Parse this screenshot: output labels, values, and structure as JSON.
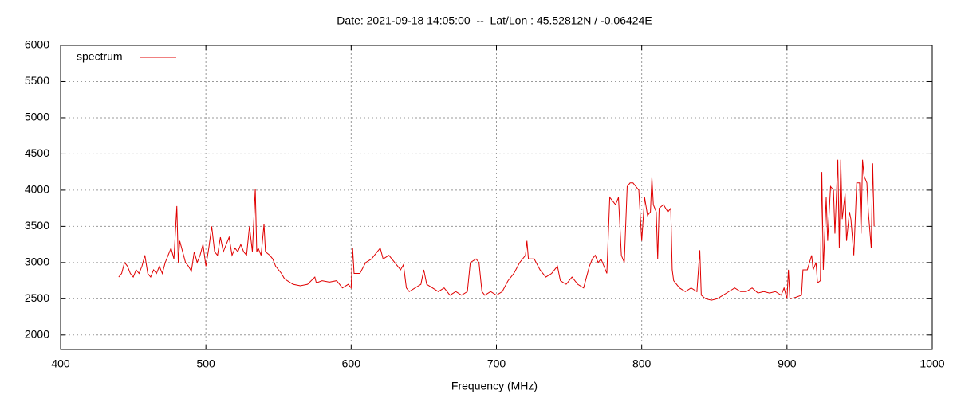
{
  "chart_data": {
    "type": "line",
    "title": "Date: 2021-09-18 14:05:00  --  Lat/Lon : 45.52812N / -0.06424E",
    "x_label": "Frequency (MHz)",
    "xlim": [
      400,
      1000
    ],
    "xticks": [
      400,
      500,
      600,
      700,
      800,
      900,
      1000
    ],
    "ylim": [
      1800,
      6000
    ],
    "yticks": [
      2000,
      2500,
      3000,
      3500,
      4000,
      4500,
      5000,
      5500,
      6000
    ],
    "grid": true,
    "legend": "top-left",
    "series": [
      {
        "name": "spectrum",
        "color": "#e00000",
        "x": [
          440,
          442,
          444,
          446,
          448,
          450,
          452,
          454,
          456,
          458,
          460,
          462,
          464,
          466,
          468,
          470,
          472,
          474,
          476,
          478,
          480,
          481,
          482,
          484,
          486,
          488,
          490,
          492,
          494,
          496,
          498,
          500,
          502,
          504,
          506,
          508,
          510,
          512,
          514,
          516,
          518,
          520,
          522,
          524,
          526,
          528,
          530,
          532,
          534,
          535,
          536,
          538,
          540,
          541,
          544,
          546,
          548,
          550,
          552,
          554,
          556,
          560,
          565,
          570,
          575,
          576,
          580,
          585,
          590,
          594,
          598,
          600,
          601,
          602,
          606,
          610,
          614,
          618,
          620,
          622,
          626,
          630,
          634,
          636,
          638,
          640,
          644,
          648,
          650,
          652,
          656,
          660,
          664,
          668,
          672,
          676,
          680,
          682,
          686,
          688,
          690,
          692,
          696,
          700,
          704,
          708,
          712,
          716,
          720,
          721,
          722,
          726,
          730,
          734,
          738,
          742,
          744,
          748,
          752,
          756,
          760,
          764,
          766,
          768,
          770,
          772,
          776,
          778,
          780,
          782,
          784,
          786,
          788,
          790,
          792,
          794,
          796,
          798,
          800,
          802,
          804,
          806,
          807,
          808,
          810,
          811,
          812,
          815,
          818,
          820,
          821,
          822,
          826,
          830,
          834,
          838,
          840,
          841,
          844,
          848,
          852,
          856,
          860,
          864,
          868,
          872,
          876,
          880,
          884,
          888,
          892,
          896,
          898,
          900,
          901,
          902,
          906,
          910,
          911,
          914,
          917,
          918,
          920,
          921,
          923,
          924,
          925,
          927,
          928,
          930,
          932,
          933,
          935,
          936,
          937,
          938,
          940,
          941,
          943,
          944,
          946,
          948,
          950,
          951,
          952,
          953,
          955,
          956,
          958,
          959,
          960
        ],
        "values": [
          2800,
          2850,
          3000,
          2950,
          2850,
          2800,
          2900,
          2850,
          2950,
          3100,
          2850,
          2800,
          2900,
          2850,
          2950,
          2850,
          3000,
          3100,
          3200,
          3050,
          3780,
          3000,
          3300,
          3150,
          3000,
          2950,
          2880,
          3150,
          3000,
          3100,
          3250,
          2950,
          3200,
          3500,
          3150,
          3100,
          3350,
          3150,
          3250,
          3350,
          3100,
          3200,
          3150,
          3250,
          3150,
          3100,
          3500,
          3150,
          4020,
          3150,
          3200,
          3100,
          3530,
          3150,
          3100,
          3050,
          2950,
          2900,
          2850,
          2780,
          2750,
          2700,
          2680,
          2700,
          2800,
          2720,
          2750,
          2730,
          2750,
          2650,
          2700,
          2650,
          3200,
          2850,
          2850,
          3000,
          3050,
          3150,
          3200,
          3050,
          3100,
          3000,
          2900,
          2970,
          2650,
          2600,
          2650,
          2700,
          2900,
          2700,
          2650,
          2600,
          2650,
          2550,
          2600,
          2550,
          2600,
          3000,
          3050,
          3000,
          2600,
          2550,
          2600,
          2550,
          2600,
          2750,
          2850,
          3000,
          3100,
          3300,
          3050,
          3050,
          2900,
          2800,
          2850,
          2950,
          2750,
          2700,
          2800,
          2700,
          2650,
          2950,
          3050,
          3100,
          3000,
          3050,
          2850,
          3900,
          3850,
          3800,
          3900,
          3100,
          3000,
          4050,
          4100,
          4100,
          4050,
          4000,
          3300,
          3900,
          3650,
          3700,
          4180,
          3800,
          3700,
          3050,
          3750,
          3800,
          3700,
          3750,
          2900,
          2750,
          2650,
          2600,
          2650,
          2600,
          3170,
          2550,
          2500,
          2480,
          2500,
          2550,
          2600,
          2650,
          2600,
          2600,
          2650,
          2580,
          2600,
          2580,
          2600,
          2550,
          2650,
          2500,
          2900,
          2500,
          2520,
          2550,
          2900,
          2900,
          3100,
          2900,
          3000,
          2720,
          2750,
          4250,
          2900,
          3900,
          3300,
          4050,
          4000,
          3400,
          4420,
          3200,
          4420,
          3600,
          3950,
          3300,
          3700,
          3600,
          3100,
          4100,
          4100,
          3400,
          4420,
          4200,
          4100,
          3700,
          3200,
          4370,
          3500
        ]
      }
    ]
  }
}
